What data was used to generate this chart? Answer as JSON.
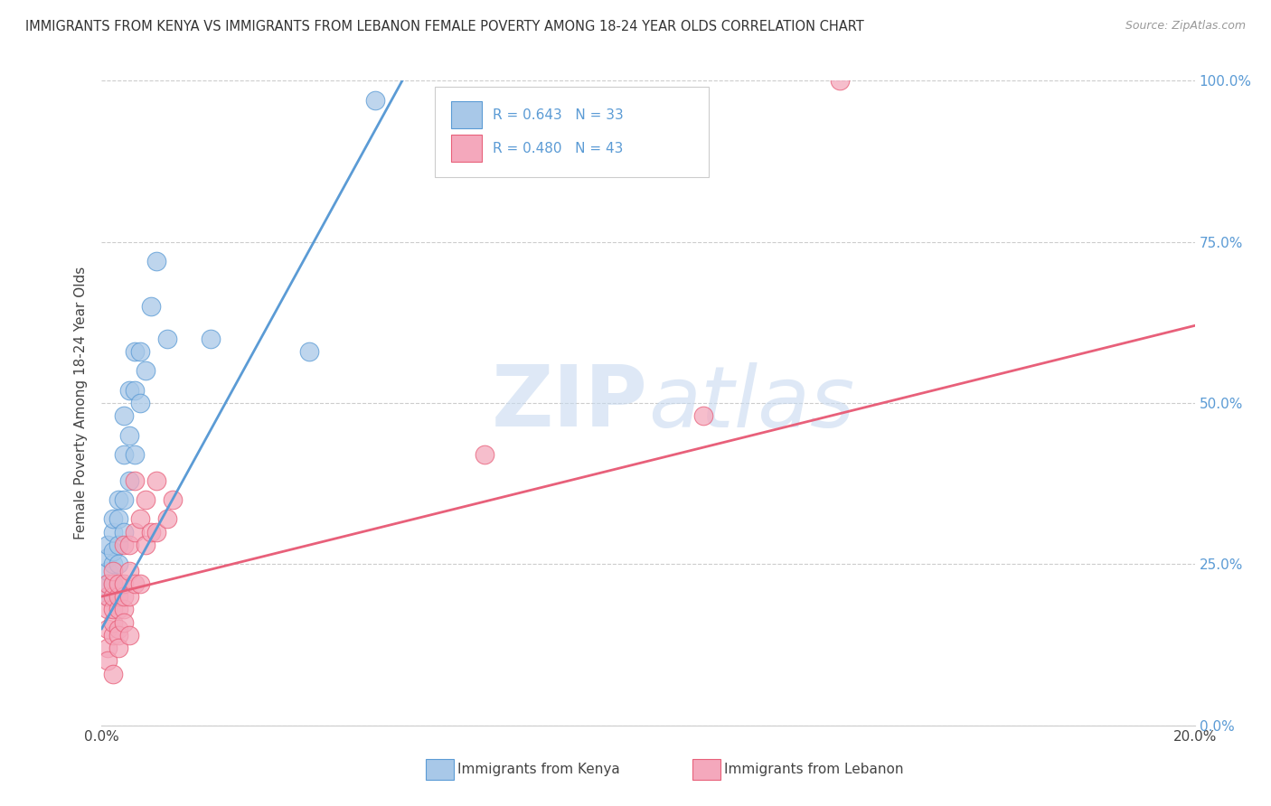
{
  "title": "IMMIGRANTS FROM KENYA VS IMMIGRANTS FROM LEBANON FEMALE POVERTY AMONG 18-24 YEAR OLDS CORRELATION CHART",
  "source": "Source: ZipAtlas.com",
  "ylabel": "Female Poverty Among 18-24 Year Olds",
  "watermark": "ZIPatlas",
  "kenya_R": 0.643,
  "kenya_N": 33,
  "lebanon_R": 0.48,
  "lebanon_N": 43,
  "xlim": [
    0.0,
    0.2
  ],
  "ylim": [
    0.0,
    1.0
  ],
  "y_ticks": [
    0.0,
    0.25,
    0.5,
    0.75,
    1.0
  ],
  "y_tick_labels_right": [
    "0.0%",
    "25.0%",
    "50.0%",
    "75.0%",
    "100.0%"
  ],
  "kenya_color": "#a8c8e8",
  "lebanon_color": "#f4a8bc",
  "kenya_line_color": "#5b9bd5",
  "lebanon_line_color": "#e8607a",
  "legend_label_kenya": "Immigrants from Kenya",
  "legend_label_lebanon": "Immigrants from Lebanon",
  "kenya_x": [
    0.001,
    0.001,
    0.001,
    0.001,
    0.001,
    0.002,
    0.002,
    0.002,
    0.002,
    0.002,
    0.003,
    0.003,
    0.003,
    0.003,
    0.004,
    0.004,
    0.004,
    0.004,
    0.005,
    0.005,
    0.005,
    0.006,
    0.006,
    0.006,
    0.007,
    0.007,
    0.008,
    0.009,
    0.01,
    0.012,
    0.02,
    0.038,
    0.05
  ],
  "kenya_y": [
    0.2,
    0.22,
    0.24,
    0.26,
    0.28,
    0.22,
    0.25,
    0.27,
    0.3,
    0.32,
    0.25,
    0.28,
    0.32,
    0.35,
    0.3,
    0.35,
    0.42,
    0.48,
    0.38,
    0.45,
    0.52,
    0.42,
    0.52,
    0.58,
    0.5,
    0.58,
    0.55,
    0.65,
    0.72,
    0.6,
    0.6,
    0.58,
    0.97
  ],
  "lebanon_x": [
    0.001,
    0.001,
    0.001,
    0.001,
    0.001,
    0.001,
    0.002,
    0.002,
    0.002,
    0.002,
    0.002,
    0.002,
    0.002,
    0.003,
    0.003,
    0.003,
    0.003,
    0.003,
    0.003,
    0.004,
    0.004,
    0.004,
    0.004,
    0.004,
    0.005,
    0.005,
    0.005,
    0.005,
    0.006,
    0.006,
    0.006,
    0.007,
    0.007,
    0.008,
    0.008,
    0.009,
    0.01,
    0.01,
    0.012,
    0.013,
    0.07,
    0.11,
    0.135
  ],
  "lebanon_y": [
    0.15,
    0.18,
    0.2,
    0.22,
    0.12,
    0.1,
    0.14,
    0.16,
    0.18,
    0.2,
    0.22,
    0.24,
    0.08,
    0.15,
    0.18,
    0.2,
    0.22,
    0.14,
    0.12,
    0.18,
    0.2,
    0.22,
    0.16,
    0.28,
    0.2,
    0.24,
    0.28,
    0.14,
    0.3,
    0.22,
    0.38,
    0.32,
    0.22,
    0.35,
    0.28,
    0.3,
    0.3,
    0.38,
    0.32,
    0.35,
    0.42,
    0.48,
    1.0
  ],
  "kenya_line_x0": 0.0,
  "kenya_line_y0": 0.15,
  "kenya_line_x1": 0.055,
  "kenya_line_y1": 1.0,
  "lebanon_line_x0": 0.0,
  "lebanon_line_y0": 0.2,
  "lebanon_line_x1": 0.2,
  "lebanon_line_y1": 0.62,
  "background_color": "#ffffff",
  "grid_color": "#cccccc"
}
